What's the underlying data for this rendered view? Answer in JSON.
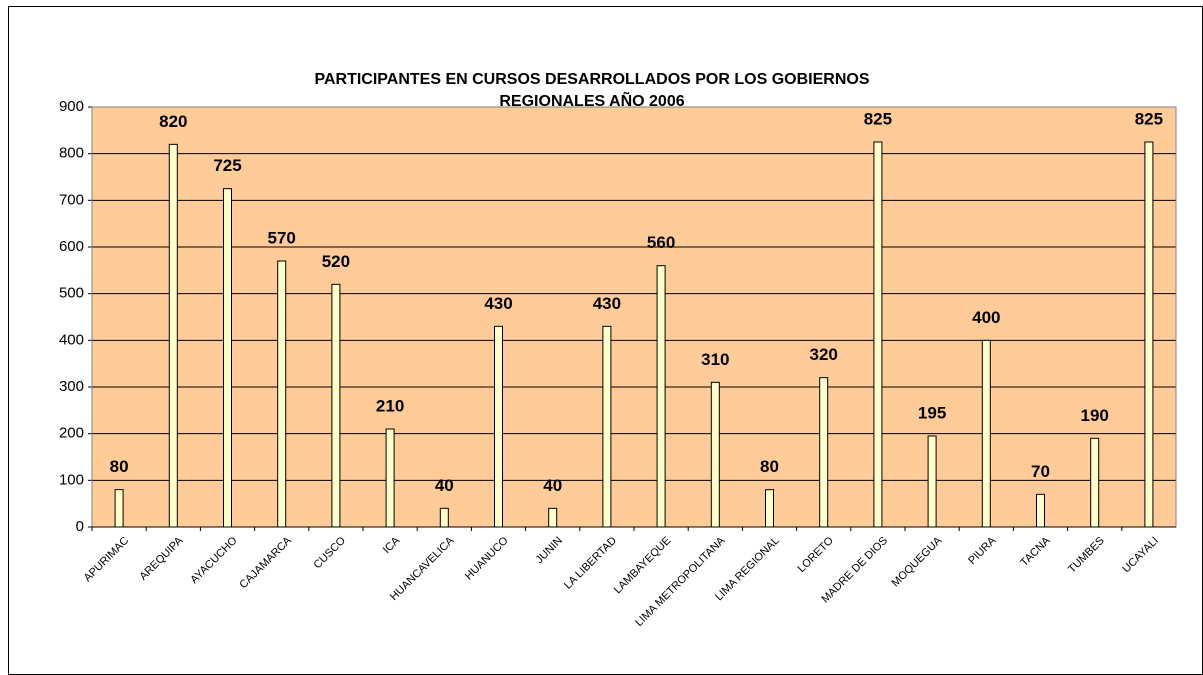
{
  "chart_data": {
    "type": "bar",
    "title": [
      "PARTICIPANTES EN CURSOS DESARROLLADOS POR LOS GOBIERNOS",
      "REGIONALES AÑO 2006"
    ],
    "categories": [
      "APURIMAC",
      "AREQUIPA",
      "AYACUCHO",
      "CAJAMARCA",
      "CUSCO",
      "ICA",
      "HUANCAVELICA",
      "HUANUCO",
      "JUNIN",
      "LA LIBERTAD",
      "LAMBAYEQUE",
      "LIMA METROPOLITANA",
      "LIMA REGIONAL",
      "LORETO",
      "MADRE DE DIOS",
      "MOQUEGUA",
      "PIURA",
      "TACNA",
      "TUMBES",
      "UCAYALI"
    ],
    "values": [
      80,
      820,
      725,
      570,
      520,
      210,
      40,
      430,
      40,
      430,
      560,
      310,
      80,
      320,
      825,
      195,
      400,
      70,
      190,
      825
    ],
    "color": "#ffffcc",
    "plot_background": "#ffcc99",
    "ylim": [
      0,
      900
    ],
    "yticks": [
      0,
      100,
      200,
      300,
      400,
      500,
      600,
      700,
      800,
      900
    ],
    "grid": true
  }
}
